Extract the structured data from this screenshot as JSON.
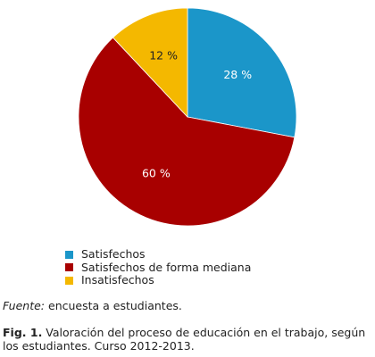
{
  "chart_data": {
    "type": "pie",
    "slices": [
      {
        "label": "Satisfechos",
        "value": 28,
        "value_label": "28 %",
        "color": "#1b96c9"
      },
      {
        "label": "Satisfechos de forma mediana",
        "value": 60,
        "value_label": "60 %",
        "color": "#a80000"
      },
      {
        "label": "Insatisfechos",
        "value": 12,
        "value_label": "12 %",
        "color": "#f4b800"
      }
    ],
    "start": "12 o'clock, clockwise",
    "legend_position": "bottom-left",
    "label_color": "#ffffff"
  },
  "source": {
    "prefix": "Fuente:",
    "text": " encuesta a estudiantes."
  },
  "caption": {
    "label": "Fig. 1.",
    "text": " Valoración del proceso de educación en el trabajo, según los estudiantes. Curso 2012-2013."
  }
}
